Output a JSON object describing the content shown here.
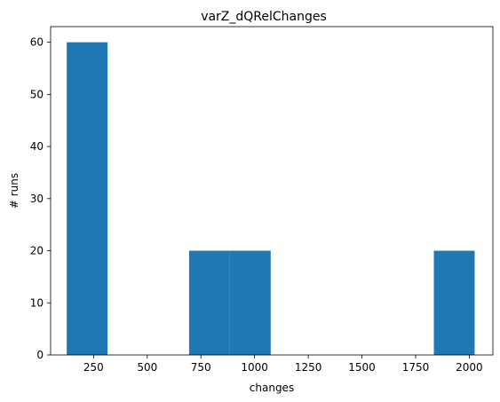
{
  "chart_data": {
    "type": "bar",
    "title": "varZ_dQRelChanges",
    "xlabel": "changes",
    "ylabel": "# runs",
    "xlim": [
      50,
      2110
    ],
    "ylim": [
      0,
      63
    ],
    "xticks": [
      250,
      500,
      750,
      1000,
      1250,
      1500,
      1750,
      2000
    ],
    "yticks": [
      0,
      10,
      20,
      30,
      40,
      50,
      60
    ],
    "bins": [
      {
        "x0": 125,
        "x1": 315,
        "value": 60
      },
      {
        "x0": 315,
        "x1": 505,
        "value": 0
      },
      {
        "x0": 505,
        "x1": 695,
        "value": 0
      },
      {
        "x0": 695,
        "x1": 885,
        "value": 20
      },
      {
        "x0": 885,
        "x1": 1075,
        "value": 20
      },
      {
        "x0": 1075,
        "x1": 1265,
        "value": 0
      },
      {
        "x0": 1265,
        "x1": 1455,
        "value": 0
      },
      {
        "x0": 1455,
        "x1": 1645,
        "value": 0
      },
      {
        "x0": 1645,
        "x1": 1835,
        "value": 0
      },
      {
        "x0": 1835,
        "x1": 2025,
        "value": 20
      }
    ],
    "bar_color": "#1f77b4",
    "grid": false,
    "legend": "none"
  }
}
